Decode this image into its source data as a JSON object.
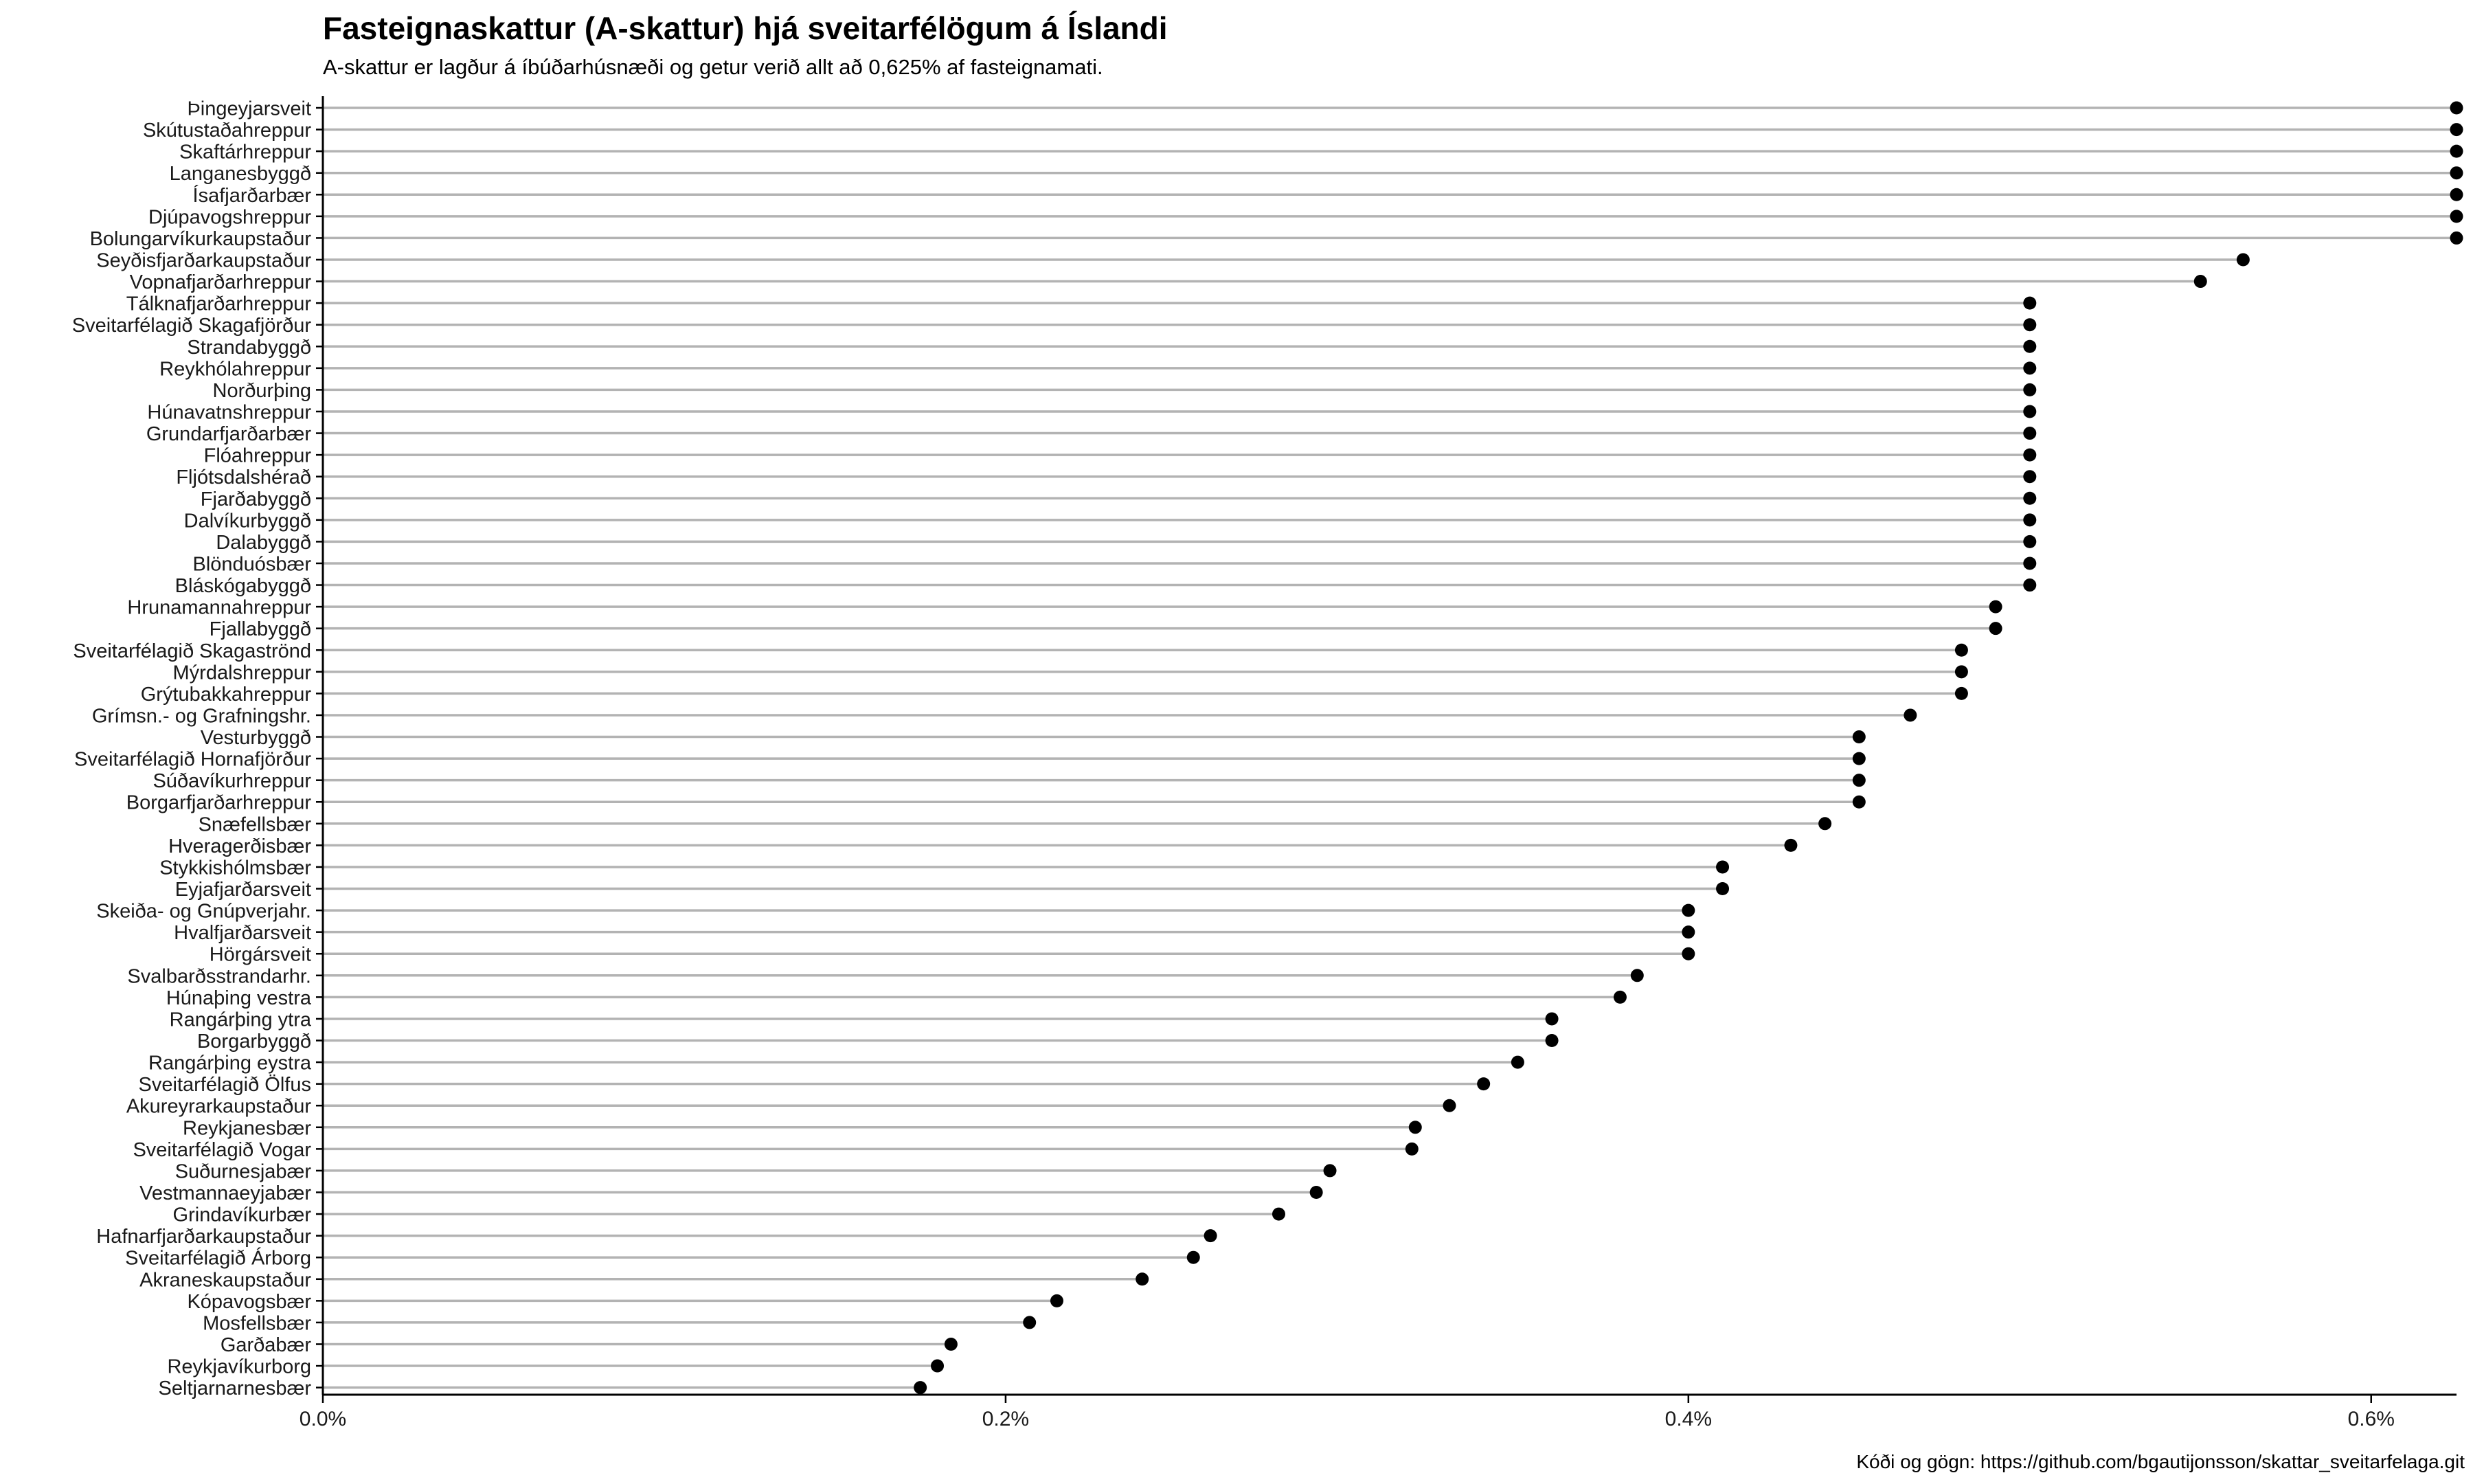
{
  "chart_data": {
    "type": "scatter",
    "style": "lollipop",
    "title": "Fasteignaskattur (A-skattur) hjá sveitarfélögum á Íslandi",
    "subtitle": "A-skattur er lagður á íbúðarhúsnæði og getur verið allt að 0,625% af fasteignamati.",
    "caption": "Kóði og gögn: https://github.com/bgautijonsson/skattar_sveitarfelaga.git",
    "xlabel": "",
    "ylabel": "",
    "xlim": [
      0,
      0.625
    ],
    "x_ticks": [
      0,
      0.2,
      0.4,
      0.6
    ],
    "x_tick_labels": [
      "0.0%",
      "0.2%",
      "0.4%",
      "0.6%"
    ],
    "grid": false,
    "colors": {
      "point": "#000000",
      "segment": "#b3b3b3",
      "axis": "#000000"
    },
    "categories": [
      "Þingeyjarsveit",
      "Skútustaðahreppur",
      "Skaftárhreppur",
      "Langanesbyggð",
      "Ísafjarðarbær",
      "Djúpavogshreppur",
      "Bolungarvíkurkaupstaður",
      "Seyðisfjarðarkaupstaður",
      "Vopnafjarðarhreppur",
      "Tálknafjarðarhreppur",
      "Sveitarfélagið Skagafjörður",
      "Strandabyggð",
      "Reykhólahreppur",
      "Norðurþing",
      "Húnavatnshreppur",
      "Grundarfjarðarbær",
      "Flóahreppur",
      "Fljótsdalshérað",
      "Fjarðabyggð",
      "Dalvíkurbyggð",
      "Dalabyggð",
      "Blönduósbær",
      "Bláskógabyggð",
      "Hrunamannahreppur",
      "Fjallabyggð",
      "Sveitarfélagið Skagaströnd",
      "Mýrdalshreppur",
      "Grýtubakkahreppur",
      "Grímsn.- og Grafningshr.",
      "Vesturbyggð",
      "Sveitarfélagið Hornafjörður",
      "Súðavíkurhreppur",
      "Borgarfjarðarhreppur",
      "Snæfellsbær",
      "Hveragerðisbær",
      "Stykkishólmsbær",
      "Eyjafjarðarsveit",
      "Skeiða- og Gnúpverjahr.",
      "Hvalfjarðarsveit",
      "Hörgársveit",
      "Svalbarðsstrandarhr.",
      "Húnaþing vestra",
      "Rangárþing ytra",
      "Borgarbyggð",
      "Rangárþing eystra",
      "Sveitarfélagið Ölfus",
      "Akureyrarkaupstaður",
      "Reykjanesbær",
      "Sveitarfélagið Vogar",
      "Suðurnesjabær",
      "Vestmannaeyjabær",
      "Grindavíkurbær",
      "Hafnarfjarðarkaupstaður",
      "Sveitarfélagið Árborg",
      "Akraneskaupstaður",
      "Kópavogsbær",
      "Mosfellsbær",
      "Garðabær",
      "Reykjavíkurborg",
      "Seltjarnarnesbær"
    ],
    "values": [
      0.625,
      0.625,
      0.625,
      0.625,
      0.625,
      0.625,
      0.625,
      0.5625,
      0.55,
      0.5,
      0.5,
      0.5,
      0.5,
      0.5,
      0.5,
      0.5,
      0.5,
      0.5,
      0.5,
      0.5,
      0.5,
      0.5,
      0.5,
      0.49,
      0.49,
      0.48,
      0.48,
      0.48,
      0.465,
      0.45,
      0.45,
      0.45,
      0.45,
      0.44,
      0.43,
      0.41,
      0.41,
      0.4,
      0.4,
      0.4,
      0.385,
      0.38,
      0.36,
      0.36,
      0.35,
      0.34,
      0.33,
      0.32,
      0.319,
      0.295,
      0.291,
      0.28,
      0.26,
      0.255,
      0.24,
      0.215,
      0.207,
      0.184,
      0.18,
      0.175
    ]
  }
}
